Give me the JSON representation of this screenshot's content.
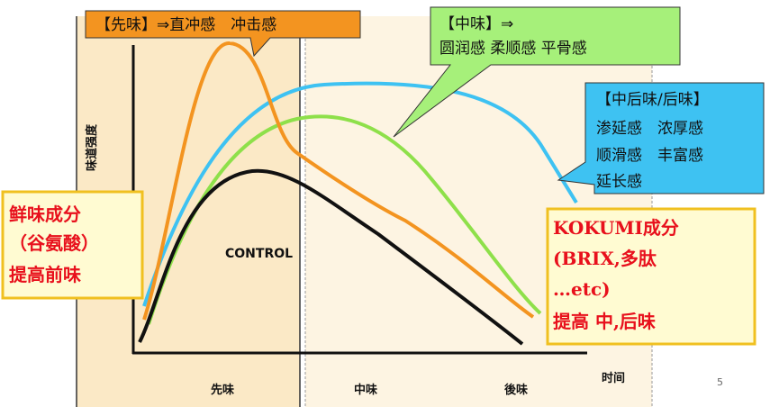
{
  "callouts": {
    "first_taste": "【先味】⇒直冲感　冲击感",
    "middle_taste": [
      "【中味】⇒",
      "圆润感 柔顺感 平骨感"
    ],
    "after_taste": [
      "【中后味/后味】",
      "渗延感　浓厚感",
      "顺滑感　丰富感",
      "延长感"
    ]
  },
  "left_box": [
    "鲜味成分",
    "（谷氨酸）",
    "提高前味"
  ],
  "right_box": [
    "KOKUMI成分",
    "(BRIX,多肽",
    "…etc)",
    "提高 中,后味"
  ],
  "y_axis_label": "味道强度",
  "curve_label": "CONTROL",
  "x_labels": [
    "先味",
    "中味",
    "後味"
  ],
  "x_axis_label": "时间",
  "page_number": "5"
}
